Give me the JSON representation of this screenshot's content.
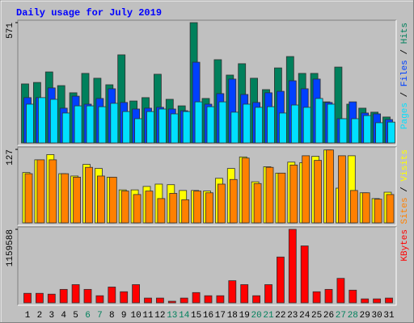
{
  "chart_data": [
    {
      "type": "bar",
      "title": "Daily usage for July 2019",
      "series": [
        {
          "name": "Hits",
          "color": "#00805c",
          "values": [
            280,
            287,
            337,
            272,
            238,
            330,
            307,
            276,
            418,
            199,
            215,
            326,
            207,
            176,
            571,
            211,
            395,
            322,
            376,
            307,
            253,
            356,
            410,
            330,
            330,
            195,
            360,
            184,
            165,
            146,
            123
          ]
        },
        {
          "name": "Files",
          "color": "#0040ff",
          "values": [
            215,
            215,
            261,
            165,
            222,
            184,
            211,
            257,
            192,
            161,
            165,
            169,
            161,
            153,
            383,
            184,
            234,
            303,
            230,
            192,
            238,
            245,
            295,
            257,
            303,
            192,
            115,
            195,
            142,
            138,
            111
          ]
        },
        {
          "name": "Pages",
          "color": "#00e0ff",
          "values": [
            184,
            215,
            207,
            142,
            176,
            176,
            172,
            188,
            149,
            115,
            149,
            161,
            138,
            149,
            195,
            172,
            195,
            146,
            184,
            169,
            172,
            142,
            180,
            169,
            211,
            184,
            115,
            115,
            130,
            96,
            99
          ]
        }
      ],
      "legend_separator": " / ",
      "ylim": [
        0,
        571
      ],
      "yticks": [
        571
      ]
    },
    {
      "type": "bar",
      "series": [
        {
          "name": "Visits",
          "color": "#ffff00",
          "values": [
            87,
            109,
            118,
            85,
            81,
            101,
            94,
            79,
            57,
            57,
            63,
            67,
            66,
            56,
            56,
            55,
            77,
            94,
            114,
            71,
            97,
            86,
            105,
            104,
            115,
            126,
            60,
            116,
            52,
            42,
            53
          ]
        },
        {
          "name": "Sites",
          "color": "#ff8000",
          "values": [
            85,
            109,
            109,
            85,
            79,
            96,
            81,
            79,
            55,
            49,
            55,
            42,
            51,
            40,
            55,
            52,
            67,
            75,
            112,
            68,
            96,
            86,
            100,
            116,
            108,
            126,
            116,
            56,
            52,
            41,
            49
          ]
        }
      ],
      "legend_separator": " / ",
      "ylim": [
        0,
        127
      ],
      "yticks": [
        127
      ]
    },
    {
      "type": "bar",
      "categories": [
        "1",
        "2",
        "3",
        "4",
        "5",
        "6",
        "7",
        "8",
        "9",
        "10",
        "11",
        "12",
        "13",
        "14",
        "15",
        "16",
        "17",
        "18",
        "19",
        "20",
        "21",
        "22",
        "23",
        "24",
        "25",
        "26",
        "27",
        "28",
        "29",
        "30",
        "31"
      ],
      "category_colors": [
        "#000000",
        "#000000",
        "#000000",
        "#000000",
        "#000000",
        "#00805c",
        "#00805c",
        "#000000",
        "#000000",
        "#000000",
        "#000000",
        "#000000",
        "#00805c",
        "#00805c",
        "#000000",
        "#000000",
        "#000000",
        "#000000",
        "#000000",
        "#00805c",
        "#00805c",
        "#000000",
        "#000000",
        "#000000",
        "#000000",
        "#000000",
        "#00805c",
        "#00805c",
        "#000000",
        "#000000",
        "#000000"
      ],
      "series": [
        {
          "name": "KBytes",
          "color": "#ff0000",
          "values": [
            150000,
            150000,
            137000,
            212000,
            287000,
            212000,
            112000,
            249000,
            175000,
            287000,
            75000,
            75000,
            25000,
            75000,
            162000,
            112000,
            112000,
            349000,
            287000,
            112000,
            287000,
            723000,
            1159588,
            898000,
            175000,
            212000,
            386000,
            200000,
            62000,
            62000,
            75000
          ]
        }
      ],
      "legend_separator": " / ",
      "ylim": [
        0,
        1159588
      ],
      "yticks": [
        1159588
      ]
    }
  ]
}
